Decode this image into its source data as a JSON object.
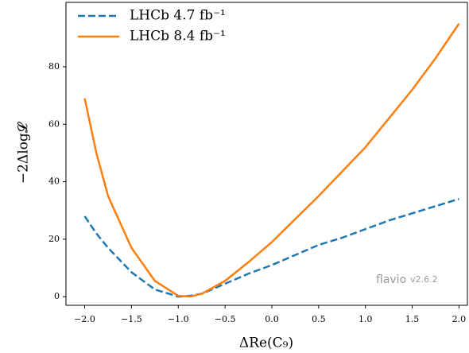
{
  "chart_data": {
    "type": "line",
    "xlabel": "ΔRe(C₉)",
    "ylabel": "−2Δlog𝓛",
    "x": [
      -2,
      -1.875,
      -1.75,
      -1.5,
      -1.25,
      -1.0,
      -0.875,
      -0.75,
      -0.5,
      -0.25,
      0,
      0.25,
      0.5,
      0.75,
      1,
      1.25,
      1.5,
      1.75,
      2
    ],
    "series": [
      {
        "name": "LHCb 4.7 fb⁻¹",
        "color": "#1f77b4",
        "dash": true,
        "values": [
          28,
          22,
          17,
          8.5,
          2.5,
          0,
          0.3,
          1,
          4.5,
          8,
          11,
          14.5,
          18,
          20.5,
          23.5,
          26.5,
          29,
          31.5,
          34
        ]
      },
      {
        "name": "LHCb 8.4 fb⁻¹",
        "color": "#ff7f0e",
        "dash": false,
        "values": [
          69,
          50,
          35,
          17,
          5.5,
          0.3,
          0,
          1,
          5.5,
          12,
          19,
          27,
          35,
          43.5,
          52,
          62,
          72,
          83,
          95
        ]
      }
    ],
    "xlim": [
      -2.2,
      2.09
    ],
    "ylim": [
      -3,
      102.4
    ],
    "xticks": [
      {
        "value": -2,
        "label": "−2.0"
      },
      {
        "value": -1.5,
        "label": "−1.5"
      },
      {
        "value": -1,
        "label": "−1.0"
      },
      {
        "value": -0.5,
        "label": "−0.5"
      },
      {
        "value": 0,
        "label": "0.0"
      },
      {
        "value": 0.5,
        "label": "0.5"
      },
      {
        "value": 1,
        "label": "1.0"
      },
      1.5,
      {
        "value": 2,
        "label": "2.0"
      }
    ],
    "yticks": [
      0,
      20,
      40,
      60,
      80
    ],
    "legend": "upper left",
    "watermark": {
      "text": "flavio",
      "version": "v2.6.2"
    }
  }
}
